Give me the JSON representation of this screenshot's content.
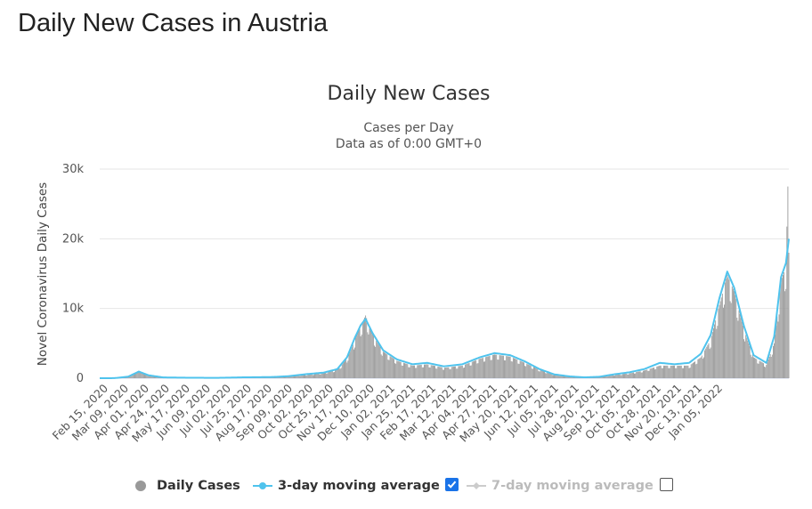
{
  "page": {
    "title": "Daily New Cases in Austria"
  },
  "chart_data": {
    "type": "bar",
    "title": "Daily New Cases",
    "subtitle_lines": [
      "Cases per Day",
      "Data as of 0:00 GMT+0"
    ],
    "ylabel": "Novel Coronavirus Daily Cases",
    "ylim": [
      0,
      30000
    ],
    "y_ticks": [
      {
        "value": 0,
        "label": "0"
      },
      {
        "value": 10000,
        "label": "10k"
      },
      {
        "value": 20000,
        "label": "20k"
      },
      {
        "value": 30000,
        "label": "30k"
      }
    ],
    "x_start": "2020-02-15",
    "x_end": "2022-01-20",
    "x_tick_labels": [
      "Feb 15, 2020",
      "Mar 09, 2020",
      "Apr 01, 2020",
      "Apr 24, 2020",
      "May 17, 2020",
      "Jun 09, 2020",
      "Jul 02, 2020",
      "Jul 25, 2020",
      "Aug 17, 2020",
      "Sep 09, 2020",
      "Oct 02, 2020",
      "Oct 25, 2020",
      "Nov 17, 2020",
      "Dec 10, 2020",
      "Jan 02, 2021",
      "Jan 25, 2021",
      "Feb 17, 2021",
      "Mar 12, 2021",
      "Apr 04, 2021",
      "Apr 27, 2021",
      "May 20, 2021",
      "Jun 12, 2021",
      "Jul 05, 2021",
      "Jul 28, 2021",
      "Aug 20, 2021",
      "Sep 12, 2021",
      "Oct 05, 2021",
      "Oct 28, 2021",
      "Nov 20, 2021",
      "Dec 13, 2021",
      "Jan 05, 2022"
    ],
    "grid": true,
    "legend_position": "bottom-center",
    "series": [
      {
        "name": "Daily Cases",
        "type": "bar",
        "color": "#999999",
        "approx_points": [
          [
            "2020-02-15",
            0
          ],
          [
            "2020-03-01",
            10
          ],
          [
            "2020-03-15",
            250
          ],
          [
            "2020-03-26",
            1050
          ],
          [
            "2020-04-05",
            450
          ],
          [
            "2020-04-20",
            100
          ],
          [
            "2020-05-20",
            50
          ],
          [
            "2020-06-15",
            40
          ],
          [
            "2020-07-10",
            110
          ],
          [
            "2020-08-10",
            150
          ],
          [
            "2020-08-25",
            250
          ],
          [
            "2020-09-15",
            500
          ],
          [
            "2020-10-01",
            750
          ],
          [
            "2020-10-15",
            1200
          ],
          [
            "2020-10-25",
            2800
          ],
          [
            "2020-11-02",
            5500
          ],
          [
            "2020-11-08",
            7500
          ],
          [
            "2020-11-13",
            9000
          ],
          [
            "2020-11-20",
            6300
          ],
          [
            "2020-12-01",
            3800
          ],
          [
            "2020-12-15",
            2500
          ],
          [
            "2020-12-31",
            1800
          ],
          [
            "2021-01-15",
            2000
          ],
          [
            "2021-02-01",
            1500
          ],
          [
            "2021-02-20",
            1800
          ],
          [
            "2021-03-10",
            2800
          ],
          [
            "2021-03-25",
            3400
          ],
          [
            "2021-04-10",
            3100
          ],
          [
            "2021-04-25",
            2200
          ],
          [
            "2021-05-10",
            1200
          ],
          [
            "2021-05-25",
            500
          ],
          [
            "2021-06-10",
            200
          ],
          [
            "2021-06-25",
            90
          ],
          [
            "2021-07-10",
            150
          ],
          [
            "2021-07-25",
            450
          ],
          [
            "2021-08-10",
            700
          ],
          [
            "2021-08-25",
            1100
          ],
          [
            "2021-09-10",
            1800
          ],
          [
            "2021-09-25",
            1800
          ],
          [
            "2021-10-10",
            1800
          ],
          [
            "2021-10-22",
            3000
          ],
          [
            "2021-11-01",
            5500
          ],
          [
            "2021-11-10",
            10500
          ],
          [
            "2021-11-18",
            14800
          ],
          [
            "2021-11-25",
            12500
          ],
          [
            "2021-12-05",
            7000
          ],
          [
            "2021-12-15",
            3000
          ],
          [
            "2021-12-28",
            1900
          ],
          [
            "2022-01-05",
            5000
          ],
          [
            "2022-01-12",
            14000
          ],
          [
            "2022-01-17",
            16000
          ],
          [
            "2022-01-19",
            27500
          ],
          [
            "2022-01-20",
            18000
          ]
        ]
      },
      {
        "name": "3-day moving average",
        "type": "line",
        "color": "#4fc3ed",
        "approx_points": [
          [
            "2020-02-15",
            0
          ],
          [
            "2020-03-01",
            10
          ],
          [
            "2020-03-15",
            220
          ],
          [
            "2020-03-26",
            950
          ],
          [
            "2020-04-05",
            420
          ],
          [
            "2020-04-20",
            110
          ],
          [
            "2020-05-20",
            60
          ],
          [
            "2020-06-15",
            50
          ],
          [
            "2020-07-10",
            120
          ],
          [
            "2020-08-10",
            170
          ],
          [
            "2020-08-25",
            280
          ],
          [
            "2020-09-15",
            600
          ],
          [
            "2020-10-01",
            800
          ],
          [
            "2020-10-15",
            1300
          ],
          [
            "2020-10-25",
            3000
          ],
          [
            "2020-11-02",
            5800
          ],
          [
            "2020-11-08",
            7600
          ],
          [
            "2020-11-13",
            8500
          ],
          [
            "2020-11-20",
            6500
          ],
          [
            "2020-12-01",
            4000
          ],
          [
            "2020-12-15",
            2700
          ],
          [
            "2020-12-31",
            2000
          ],
          [
            "2021-01-15",
            2200
          ],
          [
            "2021-02-01",
            1700
          ],
          [
            "2021-02-20",
            2000
          ],
          [
            "2021-03-10",
            3000
          ],
          [
            "2021-03-25",
            3600
          ],
          [
            "2021-04-10",
            3300
          ],
          [
            "2021-04-25",
            2400
          ],
          [
            "2021-05-10",
            1300
          ],
          [
            "2021-05-25",
            550
          ],
          [
            "2021-06-10",
            250
          ],
          [
            "2021-06-25",
            120
          ],
          [
            "2021-07-10",
            200
          ],
          [
            "2021-07-25",
            550
          ],
          [
            "2021-08-10",
            850
          ],
          [
            "2021-08-25",
            1300
          ],
          [
            "2021-09-10",
            2200
          ],
          [
            "2021-09-25",
            2000
          ],
          [
            "2021-10-10",
            2200
          ],
          [
            "2021-10-22",
            3500
          ],
          [
            "2021-11-01",
            6200
          ],
          [
            "2021-11-10",
            11500
          ],
          [
            "2021-11-18",
            15300
          ],
          [
            "2021-11-25",
            13000
          ],
          [
            "2021-12-05",
            7500
          ],
          [
            "2021-12-15",
            3300
          ],
          [
            "2021-12-28",
            2200
          ],
          [
            "2022-01-05",
            6000
          ],
          [
            "2022-01-12",
            14500
          ],
          [
            "2022-01-17",
            16500
          ],
          [
            "2022-01-20",
            20000
          ]
        ]
      },
      {
        "name": "7-day moving average",
        "type": "line",
        "color": "#cccccc",
        "visible": false
      }
    ]
  },
  "legend": {
    "daily_cases": "Daily Cases",
    "ma3": "3-day moving average",
    "ma7": "7-day moving average",
    "ma3_checked": true,
    "ma7_checked": false
  }
}
